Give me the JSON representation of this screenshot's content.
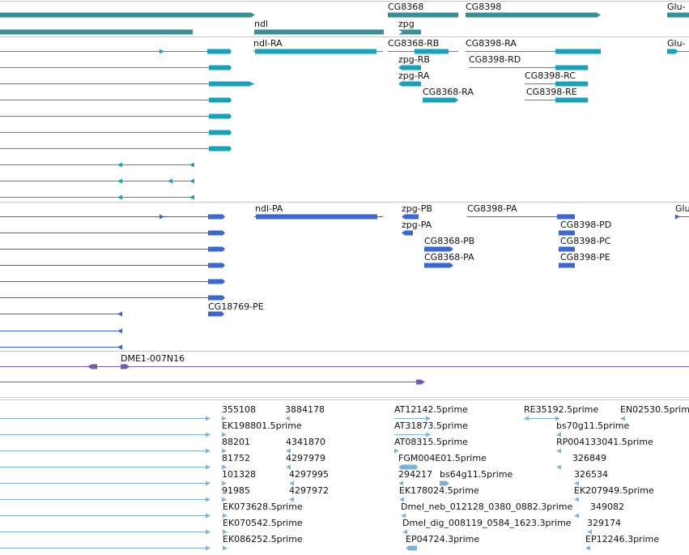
{
  "colors": {
    "gene": "#3a8f94",
    "transcript_a": "#1aa0b8",
    "transcript_b": "#3a68cc",
    "clone": "#7a5aa8",
    "est": "#7fb3d6",
    "divider": "#c8c8c8"
  },
  "genes": {
    "ndl": "ndl",
    "zpg": "zpg",
    "cg8368": "CG8368",
    "cg8398": "CG8398",
    "glu": "Glu-"
  },
  "transcripts_a": {
    "ndl_ra": "ndl-RA",
    "cg8368_rb": "CG8368-RB",
    "cg8398_ra": "CG8398-RA",
    "glu": "Glu-",
    "zpg_rb": "zpg-RB",
    "cg8398_rd": "CG8398-RD",
    "zpg_ra": "zpg-RA",
    "cg8398_rc": "CG8398-RC",
    "cg8368_ra": "CG8368-RA",
    "cg8398_re": "CG8398-RE"
  },
  "transcripts_b": {
    "ndl_pa": "ndl-PA",
    "zpg_pb": "zpg-PB",
    "cg8398_pa": "CG8398-PA",
    "glu": "Glu",
    "zpg_pa": "zpg-PA",
    "cg8398_pd": "CG8398-PD",
    "cg8368_pb": "CG8368-PB",
    "cg8398_pc": "CG8398-PC",
    "cg8368_pa": "CG8368-PA",
    "cg8398_pe": "CG8398-PE",
    "cg18769_pe": "CG18769-PE"
  },
  "clones": {
    "dme1_007n16": "DME1-007N16"
  },
  "ests": {
    "e355108": "355108",
    "e3884178": "3884178",
    "at12142": "AT12142.5prime",
    "re35192": "RE35192.5prime",
    "en02530": "EN02530.5prime",
    "ek198801": "EK198801.5prime",
    "at31873": "AT31873.5prime",
    "bs70g11": "bs70g11.5prime",
    "e88201": "88201",
    "e4341870": "4341870",
    "at08315": "AT08315.5prime",
    "rp004133041": "RP004133041.5prime",
    "e81752": "81752",
    "e4297979": "4297979",
    "fgm004e01": "FGM004E01.5prime",
    "e326849": "326849",
    "e101328": "101328",
    "e4297995": "4297995",
    "e294217": "294217",
    "bs64g11": "bs64g11.5prime",
    "e326534": "326534",
    "e91985": "91985",
    "e4297972": "4297972",
    "ek178024": "EK178024.5prime",
    "ek207949": "EK207949.5prime",
    "ek073628": "EK073628.5prime",
    "dmel_neb": "Dmel_neb_012128_0380_0882.3prime",
    "e349082": "349082",
    "ek070542": "EK070542.5prime",
    "dmel_dig": "Dmel_dig_008119_0584_1623.3prime",
    "e329174": "329174",
    "ek086252": "EK086252.5prime",
    "ep04724": "EP04724.3prime",
    "ep12246": "EP12246.3prime"
  }
}
